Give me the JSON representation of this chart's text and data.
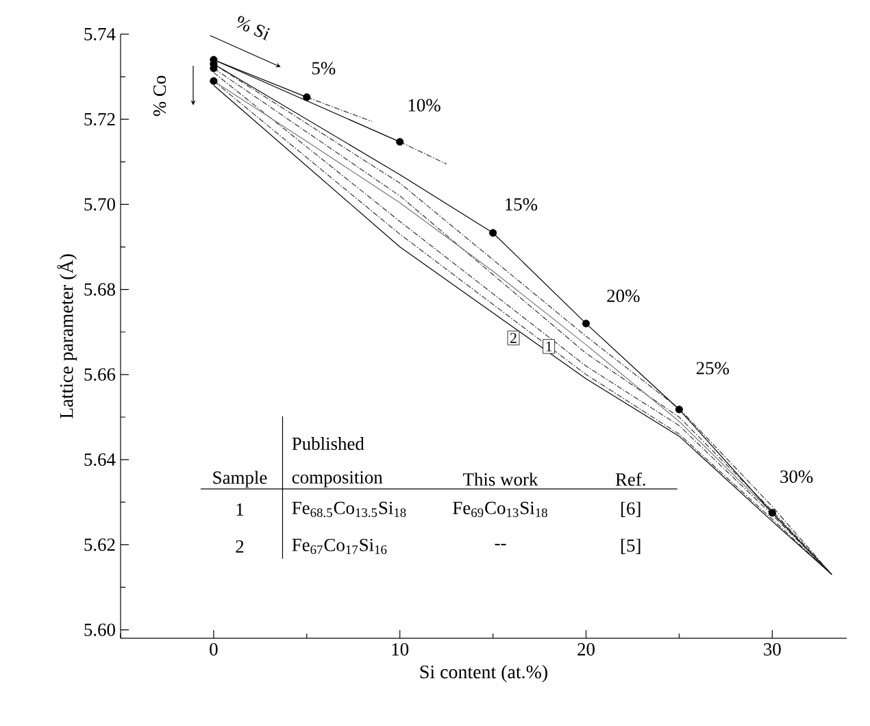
{
  "chart_data": {
    "type": "line",
    "xlabel": "Si content (at.%)",
    "ylabel": "Lattice parameter (Å)",
    "xlim": [
      -5,
      34
    ],
    "ylim": [
      5.598,
      5.74
    ],
    "xticks": [
      {
        "value": -5,
        "label": null
      },
      0,
      {
        "value": 5,
        "label": null
      },
      10,
      {
        "value": 15,
        "label": null
      },
      20,
      {
        "value": 25,
        "label": null
      },
      30
    ],
    "yticks": [
      {
        "value": 5.6,
        "label": "5.60"
      },
      {
        "value": 5.61,
        "label": null
      },
      {
        "value": 5.62,
        "label": "5.62"
      },
      {
        "value": 5.63,
        "label": null
      },
      {
        "value": 5.64,
        "label": "5.64"
      },
      {
        "value": 5.65,
        "label": null
      },
      {
        "value": 5.66,
        "label": "5.66"
      },
      {
        "value": 5.67,
        "label": null
      },
      {
        "value": 5.68,
        "label": "5.68"
      },
      {
        "value": 5.69,
        "label": null
      },
      {
        "value": 5.7,
        "label": "5.70"
      },
      {
        "value": 5.71,
        "label": null
      },
      {
        "value": 5.72,
        "label": "5.72"
      },
      {
        "value": 5.73,
        "label": null
      },
      {
        "value": 5.74,
        "label": "5.74"
      }
    ],
    "series": [
      {
        "color": "#333333",
        "line_style": "dashed",
        "x": [
          0,
          10,
          20,
          25,
          30,
          33.2
        ],
        "values": [
          5.733,
          5.705,
          5.669,
          5.652,
          5.629,
          5.613
        ]
      },
      {
        "color": "#333333",
        "line_style": "dashed",
        "x": [
          0,
          10,
          20,
          25,
          30,
          33.2
        ],
        "values": [
          5.732,
          5.702,
          5.665,
          5.65,
          5.628,
          5.613
        ]
      },
      {
        "color": "#333333",
        "line_style": "dashed",
        "x": [
          0,
          10,
          20,
          25,
          30,
          33.2
        ],
        "values": [
          5.731,
          5.696,
          5.662,
          5.648,
          5.627,
          5.613
        ]
      },
      {
        "color": "#333333",
        "line_style": "dashed",
        "x": [
          0,
          10,
          20,
          25,
          30,
          33.2
        ],
        "values": [
          5.729,
          5.693,
          5.66,
          5.646,
          5.626,
          5.613
        ]
      },
      {
        "color": "#000000",
        "line_style": "solid",
        "x": [
          0,
          10,
          20,
          25,
          30,
          33.2
        ],
        "values": [
          5.728,
          5.69,
          5.659,
          5.6455,
          5.6255,
          5.613
        ]
      },
      {
        "color": "#777777",
        "line_style": "solid",
        "x": [
          0,
          5,
          10,
          15,
          20,
          25,
          30,
          33.2
        ],
        "values": [
          5.729,
          5.7148,
          5.7004,
          5.6843,
          5.667,
          5.649,
          5.6275,
          5.613
        ]
      },
      {
        "color": "#000000",
        "line_style": "solid",
        "x": [
          0,
          10,
          15,
          20,
          25,
          30,
          33.2
        ],
        "values": [
          5.733,
          5.707,
          5.6933,
          5.672,
          5.6518,
          5.6275,
          5.613
        ]
      },
      {
        "color": "#000000",
        "line_style": "solid",
        "x": [
          0,
          5
        ],
        "values": [
          5.734,
          5.7252
        ]
      },
      {
        "color": "#333333",
        "line_style": "dashed",
        "x": [
          5,
          8.5
        ],
        "values": [
          5.7252,
          5.7195
        ]
      },
      {
        "color": "#000000",
        "line_style": "solid",
        "x": [
          0,
          10
        ],
        "values": [
          5.734,
          5.7147
        ]
      },
      {
        "color": "#333333",
        "line_style": "dashed",
        "x": [
          10,
          12.5
        ],
        "values": [
          5.7147,
          5.7095
        ]
      },
      {
        "type": "scatter",
        "color": "#000000",
        "x": [
          0,
          0,
          0,
          0,
          5,
          10,
          15,
          20,
          25,
          30
        ],
        "values": [
          5.734,
          5.733,
          5.732,
          5.729,
          5.7252,
          5.7147,
          5.6933,
          5.672,
          5.6518,
          5.6275
        ]
      }
    ],
    "annotations": [
      {
        "text": "2",
        "x": 16.1,
        "y": 5.6686
      },
      {
        "text": "1",
        "x": 18,
        "y": 5.6666
      },
      "5%",
      "10%",
      "15%",
      "20%",
      "25%",
      "30%",
      "% Si",
      "% Co",
      "Sample",
      "Published",
      "composition",
      "This work",
      "Ref.",
      "1",
      "Fe$_{68.5}$Co$_{13.5}$Si$_{18}$",
      "Fe$_{69}$Co$_{13}$Si$_{18}$",
      "[6]",
      "2",
      "Fe$_{67}$Co$_{17}$Si$_{16}$",
      "--",
      "[5]"
    ]
  }
}
